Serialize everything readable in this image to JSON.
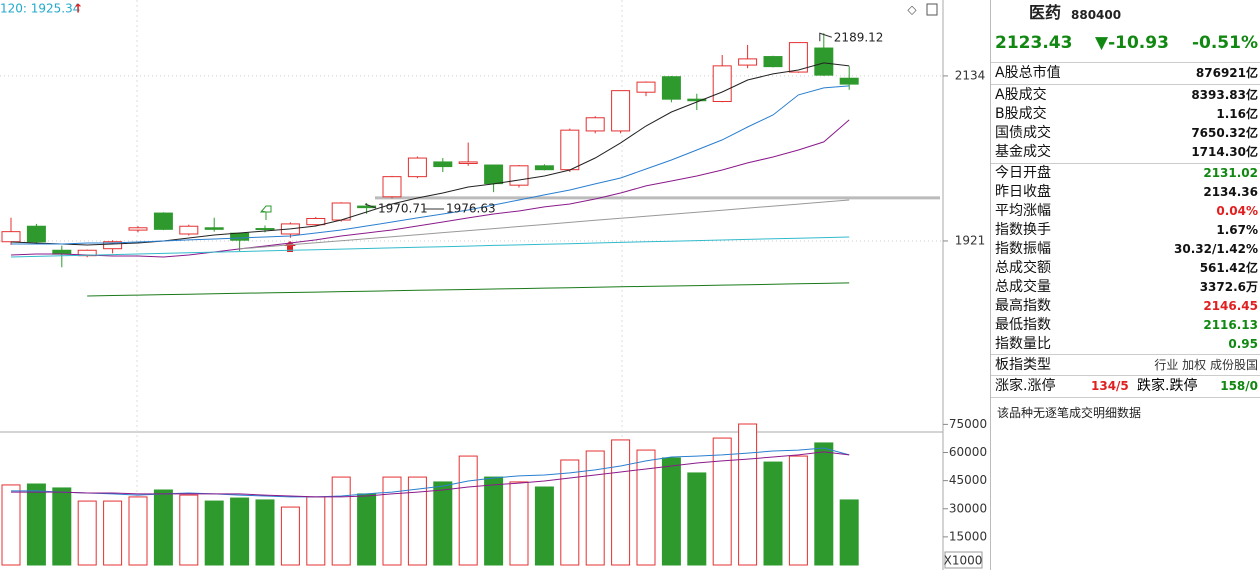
{
  "chart_data": [
    {
      "type": "candlestick",
      "ma_label": "120: 1925.34",
      "open": [
        1920,
        1940,
        1909,
        1902,
        1911,
        1935,
        1957,
        1930,
        1938,
        1931,
        1937,
        1930,
        1942,
        1948,
        1966,
        1978,
        2004,
        2023,
        2021,
        2019,
        1993,
        2018,
        2013,
        2063,
        2063,
        2113,
        2133,
        2104,
        2101,
        2148,
        2159,
        2139,
        2170,
        2131.02
      ],
      "high": [
        1951,
        1943,
        1915,
        1910,
        1922,
        1940,
        1958,
        1942,
        1951,
        1932,
        1941,
        1945,
        1952,
        1971,
        1970,
        2005,
        2030,
        2028,
        2048,
        2019,
        2019,
        2020,
        2066,
        2082,
        2115,
        2127,
        2134,
        2111,
        2161,
        2174,
        2160,
        2177,
        2189.12,
        2146.45
      ],
      "low": [
        1916,
        1917,
        1887,
        1900,
        1905,
        1932,
        1935,
        1928,
        1933,
        1908,
        1932,
        1925,
        1940,
        1946,
        1956,
        1976,
        2002,
        2010,
        2018,
        1984,
        1990,
        2012,
        2010,
        2060,
        2060,
        2108,
        2100,
        2090,
        2100,
        2144,
        2145,
        2138,
        2134,
        2116.13
      ],
      "close": [
        1933,
        1920,
        1904,
        1909,
        1920,
        1938,
        1936,
        1940,
        1936,
        1922,
        1936,
        1943,
        1950,
        1970,
        1964,
        2004,
        2028,
        2017,
        2023,
        1995,
        2018,
        2013,
        2064,
        2080,
        2115,
        2126,
        2104,
        2102,
        2147,
        2156,
        2146,
        2177,
        2135,
        2123.43
      ],
      "color_up": "#e53030",
      "color_down": "#2e9a2e",
      "series": [
        {
          "color": "#222222",
          "values": [
            1919.7,
            1918.4,
            1917.1,
            1915.8,
            1917.1,
            1918.4,
            1921.0,
            1924.8,
            1928.7,
            1931.3,
            1933.9,
            1936.5,
            1940.3,
            1948.1,
            1958.4,
            1968.7,
            1976.5,
            1982.9,
            1990.7,
            1994.6,
            1999.7,
            2004.9,
            2012.6,
            2028.1,
            2047.5,
            2069.4,
            2087.5,
            2100.4,
            2113.3,
            2128.8,
            2136.6,
            2141.7,
            2150.8,
            2146.9
          ]
        },
        {
          "color": "#2a7fd0",
          "values": [
            1917.1,
            1917.1,
            1917.1,
            1918.4,
            1918.4,
            1919.7,
            1921.0,
            1922.3,
            1923.5,
            1924.8,
            1926.1,
            1927.4,
            1931.3,
            1935.2,
            1940.3,
            1945.5,
            1950.7,
            1955.8,
            1961.0,
            1967.4,
            1973.9,
            1980.4,
            1986.8,
            1994.6,
            2002.3,
            2013.9,
            2025.5,
            2038.4,
            2051.4,
            2068.1,
            2083.6,
            2109.5,
            2118.5,
            2121.1
          ]
        },
        {
          "color": "#8b1a8b",
          "values": [
            1902.9,
            1904.2,
            1904.2,
            1902.9,
            1901.6,
            1901.6,
            1900.3,
            1902.9,
            1906.8,
            1910.7,
            1914.5,
            1918.4,
            1922.3,
            1927.4,
            1931.3,
            1935.2,
            1940.3,
            1945.5,
            1950.7,
            1955.8,
            1959.7,
            1964.9,
            1968.7,
            1975.2,
            1982.9,
            1992.0,
            1998.4,
            2004.9,
            2012.6,
            2021.7,
            2029.4,
            2038.4,
            2048.8,
            2077.2
          ]
        },
        {
          "color": "#999999",
          "values": [
            null,
            null,
            null,
            null,
            null,
            null,
            null,
            null,
            null,
            1910.7,
            1913.3,
            1916.0,
            1918.6,
            1921.2,
            1923.9,
            1926.5,
            1929.1,
            1931.8,
            1934.4,
            1937.0,
            1939.7,
            1942.3,
            1944.9,
            1947.6,
            1950.2,
            1952.8,
            1955.5,
            1958.1,
            1960.7,
            1963.4,
            1966.0,
            1968.6,
            1971.3,
            1973.9
          ]
        },
        {
          "color": "#33bbcc",
          "values": [
            1900.3,
            1901.1,
            1901.9,
            1902.6,
            1903.4,
            1904.2,
            1905.0,
            1905.8,
            1906.6,
            1907.3,
            1908.1,
            1908.9,
            1909.7,
            1910.5,
            1911.2,
            1912.0,
            1912.8,
            1913.6,
            1914.4,
            1915.2,
            1915.9,
            1916.7,
            1917.5,
            1918.3,
            1919.1,
            1919.9,
            1920.6,
            1921.4,
            1922.2,
            1923.0,
            1923.8,
            1924.5,
            1925.3,
            1926.1
          ]
        },
        {
          "color": "#1a7a1a",
          "values": [
            null,
            null,
            null,
            1850.0,
            1850.6,
            1851.1,
            1851.7,
            1852.2,
            1852.8,
            1853.4,
            1853.9,
            1854.5,
            1855.0,
            1855.6,
            1856.2,
            1856.7,
            1857.3,
            1857.8,
            1858.4,
            1859.0,
            1859.5,
            1860.1,
            1860.6,
            1861.2,
            1861.8,
            1862.3,
            1862.9,
            1863.4,
            1864.0,
            1864.6,
            1865.1,
            1865.7,
            1866.2,
            1866.8
          ]
        }
      ],
      "markers": [
        1970.71,
        1976.63
      ],
      "ylim": [
        1677,
        2232
      ],
      "yticks": [
        2134,
        1921
      ]
    },
    {
      "type": "bar",
      "unit_label": "X1000",
      "values": [
        42700,
        43200,
        41100,
        34100,
        34100,
        36300,
        40000,
        37300,
        34100,
        35700,
        34700,
        30900,
        36300,
        46900,
        37900,
        46900,
        46900,
        44300,
        58100,
        46900,
        44300,
        41600,
        56000,
        60800,
        66700,
        61300,
        57100,
        49100,
        67700,
        75200,
        54900,
        58100,
        65100,
        34700
      ],
      "series": [
        {
          "color": "#2a7fd0",
          "values": [
            39500,
            39500,
            38900,
            38400,
            37900,
            37300,
            37900,
            38400,
            37900,
            37300,
            36800,
            36300,
            36300,
            36800,
            37900,
            38900,
            40500,
            42100,
            44800,
            46400,
            47500,
            48000,
            49100,
            50700,
            52800,
            55500,
            57600,
            58100,
            58700,
            59700,
            60800,
            61300,
            62400,
            58700
          ]
        },
        {
          "color": "#8b1a8b",
          "values": [
            38900,
            38900,
            38900,
            38400,
            38400,
            37900,
            37900,
            37900,
            37900,
            37900,
            37300,
            36800,
            36300,
            36300,
            36800,
            37900,
            38900,
            40000,
            41600,
            42700,
            43700,
            44800,
            46400,
            48000,
            49600,
            51200,
            52800,
            54400,
            55500,
            56500,
            57600,
            58700,
            60300,
            58700
          ]
        }
      ],
      "ylim": [
        0,
        80000
      ],
      "yticks": [
        15000,
        30000,
        45000,
        60000,
        75000
      ]
    }
  ],
  "quote": {
    "name": "医药",
    "code": "880400",
    "price": "2123.43",
    "change": "▼-10.93",
    "change_pct": "-0.51%",
    "rows": [
      [
        "A股总市值",
        "876921亿"
      ],
      [
        "A股成交",
        "8393.83亿"
      ],
      [
        "B股成交",
        "1.16亿"
      ],
      [
        "国债成交",
        "7650.32亿"
      ],
      [
        "基金成交",
        "1714.30亿"
      ],
      [
        "今日开盘",
        "2131.02"
      ],
      [
        "昨日收盘",
        "2134.36"
      ],
      [
        "平均涨幅",
        "0.04%"
      ],
      [
        "指数换手",
        "1.67%"
      ],
      [
        "指数振幅",
        "30.32/1.42%"
      ],
      [
        "总成交额",
        "561.42亿"
      ],
      [
        "总成交量",
        "3372.6万"
      ],
      [
        "最高指数",
        "2146.45"
      ],
      [
        "最低指数",
        "2116.13"
      ],
      [
        "指数量比",
        "0.95"
      ]
    ],
    "sector_label": "板指类型",
    "sector_value": "行业 加权 成份股国",
    "breadth": [
      "涨家.涨停",
      "134/5",
      "跌家.跌停",
      "158/0"
    ],
    "note": "该品种无逐笔成交明细数据"
  }
}
